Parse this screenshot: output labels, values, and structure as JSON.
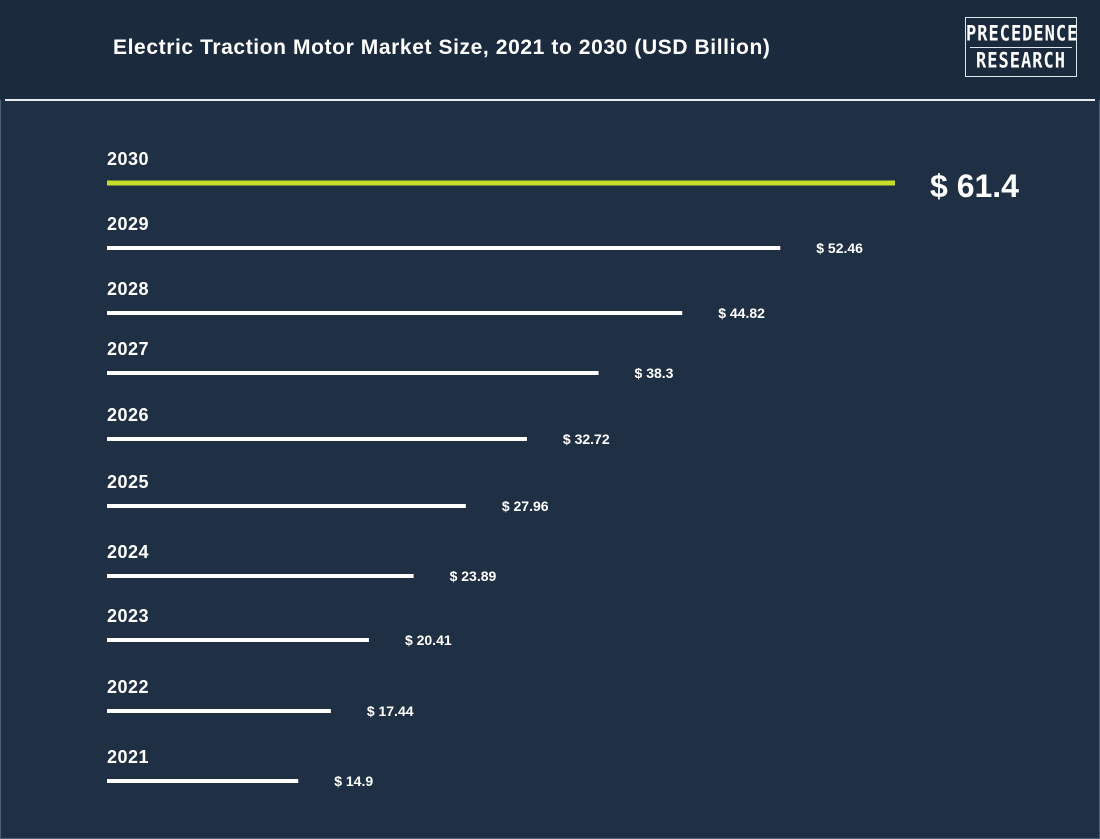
{
  "title": "Electric Traction Motor Market Size, 2021 to 2030 (USD Billion)",
  "logo": {
    "line1": "PRECEDENCE",
    "line2": "RESEARCH"
  },
  "colors": {
    "background": "#1f3044",
    "bar": "#ffffff",
    "highlight": "#c8dc2a"
  },
  "chart_data": {
    "type": "bar",
    "orientation": "horizontal",
    "title": "Electric Traction Motor Market Size, 2021 to 2030 (USD Billion)",
    "categories": [
      "2030",
      "2029",
      "2028",
      "2027",
      "2026",
      "2025",
      "2024",
      "2023",
      "2022",
      "2021"
    ],
    "values": [
      61.4,
      52.46,
      44.82,
      38.3,
      32.72,
      27.96,
      23.89,
      20.41,
      17.44,
      14.9
    ],
    "value_labels": [
      "$ 61.4",
      "$ 52.46",
      "$ 44.82",
      "$ 38.3",
      "$ 32.72",
      "$ 27.96",
      "$ 23.89",
      "$ 20.41",
      "$ 17.44",
      "$ 14.9"
    ],
    "highlight_category": "2030",
    "xlabel": "",
    "ylabel": "",
    "grid": false
  }
}
